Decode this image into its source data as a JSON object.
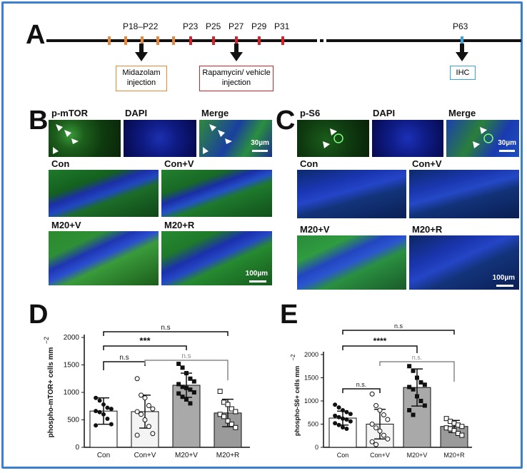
{
  "panel_a": {
    "label": "A",
    "timepoints": [
      "P18–P22",
      "P23",
      "P25",
      "P27",
      "P29",
      "P31",
      "P63"
    ],
    "box_midazolam": [
      "Midazolam",
      "injection"
    ],
    "box_rapamycin": [
      "Rapamycin/ vehicle",
      "injection"
    ],
    "box_ihc": "IHC",
    "colors": {
      "orange": "#e8883a",
      "red": "#d9222a",
      "blue": "#3ba3e0"
    }
  },
  "panel_b": {
    "label": "B",
    "top_labels": [
      "p-mTOR",
      "DAPI",
      "Merge"
    ],
    "top_scale": "30µm",
    "group_labels": [
      "Con",
      "Con+V",
      "M20+V",
      "M20+R"
    ],
    "bottom_scale": "100µm"
  },
  "panel_c": {
    "label": "C",
    "top_labels": [
      "p-S6",
      "DAPI",
      "Merge"
    ],
    "top_scale": "30µm",
    "group_labels": [
      "Con",
      "Con+V",
      "M20+V",
      "M20+R"
    ],
    "bottom_scale": "100µm"
  },
  "chart_data": [
    {
      "type": "bar",
      "panel_label": "D",
      "categories": [
        "Con",
        "Con+V",
        "M20+V",
        "M20+R"
      ],
      "values": [
        660,
        650,
        1130,
        625
      ],
      "errors": [
        240,
        300,
        220,
        250
      ],
      "ylabel": "phospho-mTOR+ cells mm",
      "ylabel_sup": "−2",
      "ylim": [
        0,
        2000
      ],
      "yticks": [
        0,
        500,
        1000,
        1500,
        2000
      ],
      "significance": [
        {
          "label": "n.s",
          "from": "Con",
          "to": "M20+R"
        },
        {
          "label": "***",
          "from": "Con",
          "to": "M20+V"
        },
        {
          "label": "n.s",
          "from": "Con",
          "to": "Con+V"
        },
        {
          "label": "n.s",
          "from": "Con+V",
          "to": "M20+R"
        }
      ],
      "points": {
        "Con": [
          900,
          850,
          780,
          720,
          700,
          660,
          640,
          600,
          520,
          420,
          400
        ],
        "Con+V": [
          1250,
          950,
          900,
          760,
          700,
          650,
          600,
          500,
          380,
          250,
          220
        ],
        "M20+V": [
          1520,
          1450,
          1350,
          1250,
          1200,
          1150,
          1100,
          1080,
          1050,
          1000,
          980,
          920,
          870,
          800
        ],
        "M20+R": [
          1020,
          820,
          780,
          700,
          650,
          600,
          560,
          480,
          420,
          360
        ]
      }
    },
    {
      "type": "bar",
      "panel_label": "E",
      "categories": [
        "Con",
        "Con+V",
        "M20+V",
        "M20+R"
      ],
      "values": [
        630,
        500,
        1290,
        450
      ],
      "errors": [
        150,
        320,
        400,
        130
      ],
      "ylabel": "phospho-S6+ cells mm",
      "ylabel_sup": "−2",
      "ylim": [
        0,
        2000
      ],
      "yticks": [
        0,
        500,
        1000,
        1500,
        2000
      ],
      "significance": [
        {
          "label": "n.s",
          "from": "Con",
          "to": "M20+R"
        },
        {
          "label": "****",
          "from": "Con",
          "to": "M20+V"
        },
        {
          "label": "n.s.",
          "from": "Con",
          "to": "Con+V"
        },
        {
          "label": "n.s.",
          "from": "Con+V",
          "to": "M20+R"
        }
      ],
      "points": {
        "Con": [
          920,
          860,
          800,
          760,
          720,
          680,
          650,
          620,
          600,
          560,
          520,
          480,
          430,
          400
        ],
        "Con+V": [
          1150,
          900,
          800,
          700,
          600,
          500,
          420,
          350,
          260,
          180,
          120,
          60
        ],
        "M20+V": [
          1750,
          1650,
          1500,
          1400,
          1350,
          1300,
          1250,
          1100,
          1000,
          900,
          800,
          700
        ],
        "M20+R": [
          620,
          560,
          520,
          480,
          450,
          420,
          400,
          360,
          300,
          260
        ]
      }
    }
  ]
}
